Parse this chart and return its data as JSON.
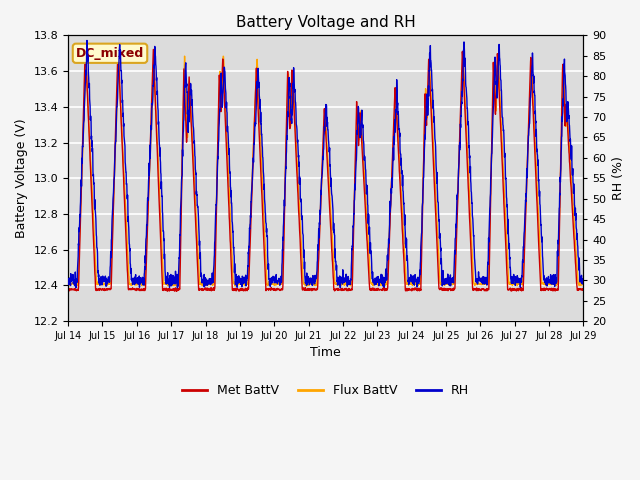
{
  "title": "Battery Voltage and RH",
  "xlabel": "Time",
  "ylabel_left": "Battery Voltage (V)",
  "ylabel_right": "RH (%)",
  "ylim_left": [
    12.2,
    13.8
  ],
  "ylim_right": [
    20,
    90
  ],
  "yticks_left": [
    12.2,
    12.4,
    12.6,
    12.8,
    13.0,
    13.2,
    13.4,
    13.6,
    13.8
  ],
  "yticks_right": [
    20,
    25,
    30,
    35,
    40,
    45,
    50,
    55,
    60,
    65,
    70,
    75,
    80,
    85,
    90
  ],
  "xtick_labels": [
    "Jul 14",
    "Jul 15",
    "Jul 16",
    "Jul 17",
    "Jul 18",
    "Jul 19",
    "Jul 20",
    "Jul 21",
    "Jul 22",
    "Jul 23",
    "Jul 24",
    "Jul 25",
    "Jul 26",
    "Jul 27",
    "Jul 28",
    "Jul 29"
  ],
  "annotation_text": "DC_mixed",
  "annotation_color": "#8B0000",
  "annotation_bg": "#FFFACD",
  "annotation_border": "#DAA520",
  "color_met": "#CC0000",
  "color_flux": "#FFA500",
  "color_rh": "#0000CC",
  "legend_labels": [
    "Met BattV",
    "Flux BattV",
    "RH"
  ],
  "bg_color": "#DCDCDC",
  "fig_bg_color": "#F5F5F5",
  "grid_color": "#FFFFFF",
  "n_days": 15,
  "seed": 42
}
